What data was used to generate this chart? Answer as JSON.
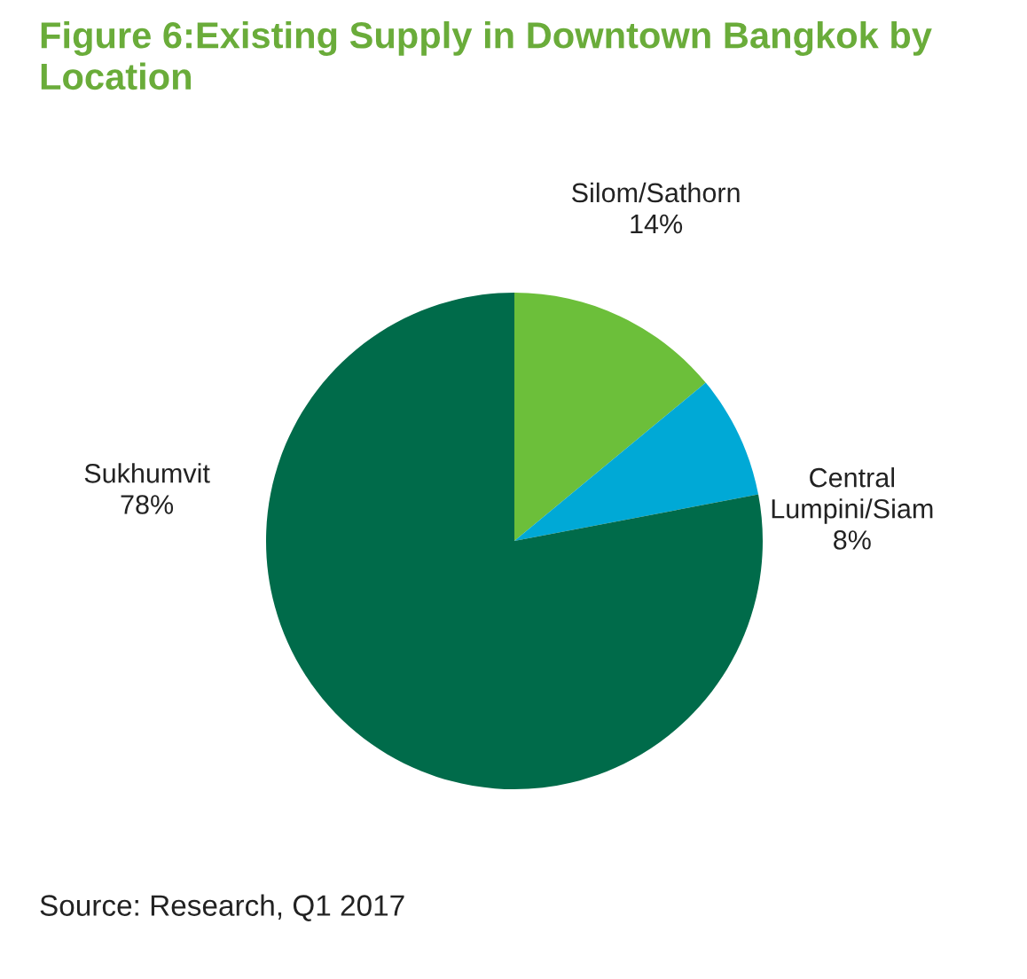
{
  "chart_data": {
    "type": "pie",
    "title": "Figure 6:Existing Supply in Downtown Bangkok by Location",
    "categories": [
      "Silom/Sathorn",
      "Central Lumpini/Siam",
      "Sukhumvit"
    ],
    "values": [
      14,
      8,
      78
    ],
    "colors": [
      "#6cbf3a",
      "#00a9d6",
      "#006b4a"
    ],
    "value_labels": [
      "14%",
      "8%",
      "78%"
    ],
    "annotations": [
      "Source: Research, Q1 2017"
    ]
  }
}
